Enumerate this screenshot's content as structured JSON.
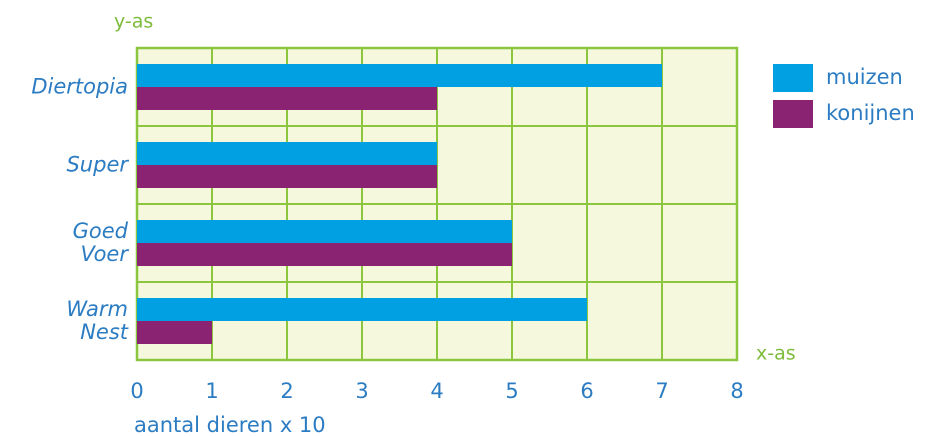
{
  "chart_data": {
    "type": "bar",
    "orientation": "horizontal",
    "y_axis_label": "y-as",
    "x_axis_label": "x-as",
    "x_axis_title": "aantal dieren x 10",
    "categories": [
      "Diertopia",
      "Super",
      "Goed\nVoer",
      "Warm\nNest"
    ],
    "series": [
      {
        "name": "muizen",
        "color": "#00a0e3",
        "values": [
          7,
          4,
          5,
          6
        ]
      },
      {
        "name": "konijnen",
        "color": "#8a2372",
        "values": [
          4,
          4,
          5,
          1
        ]
      }
    ],
    "xlim": [
      0,
      8
    ],
    "xticks": [
      0,
      1,
      2,
      3,
      4,
      5,
      6,
      7,
      8
    ],
    "grid": true
  }
}
